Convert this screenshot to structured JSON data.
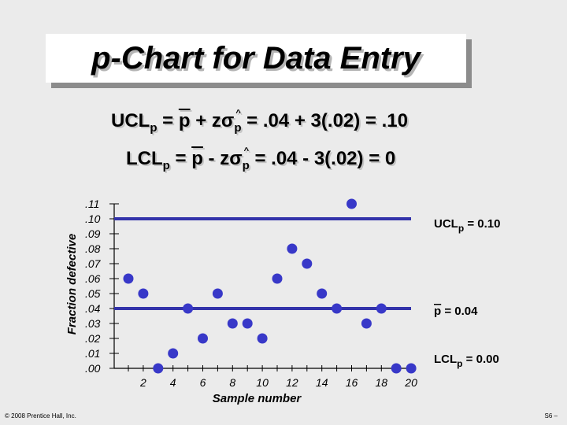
{
  "slide": {
    "title": "p-Chart for Data Entry",
    "ucl_equation": {
      "lhs": "UCL",
      "sub": "p",
      "p": "p",
      "z": "zσ",
      "rhs": "= .04 + 3(.02) = .10"
    },
    "lcl_equation": {
      "lhs": "LCL",
      "sub": "p",
      "p": "p",
      "z": "zσ",
      "rhs": "= .04 - 3(.02) = 0"
    },
    "copyright": "© 2008 Prentice Hall, Inc.",
    "page_number": "S6 –"
  },
  "chart_data": {
    "type": "scatter",
    "title": "",
    "xlabel": "Sample number",
    "ylabel": "Fraction defective",
    "xlim": [
      1,
      20
    ],
    "ylim": [
      0,
      0.11
    ],
    "x_ticks": [
      2,
      4,
      6,
      8,
      10,
      12,
      14,
      16,
      18,
      20
    ],
    "y_ticks": [
      ".11",
      ".10",
      ".09",
      ".08",
      ".07",
      ".06",
      ".05",
      ".04",
      ".03",
      ".02",
      ".01",
      ".00"
    ],
    "x": [
      1,
      2,
      3,
      4,
      5,
      6,
      7,
      8,
      9,
      10,
      11,
      12,
      13,
      14,
      15,
      16,
      17,
      18,
      19,
      20
    ],
    "y": [
      0.06,
      0.05,
      0.0,
      0.01,
      0.04,
      0.02,
      0.05,
      0.03,
      0.03,
      0.02,
      0.06,
      0.08,
      0.07,
      0.05,
      0.04,
      0.11,
      0.03,
      0.04,
      0.0,
      0.0
    ],
    "point_color": "#3838c8",
    "line_color": "#3333aa",
    "control_lines": [
      {
        "name": "UCL",
        "value": 0.1,
        "label_main": "UCL",
        "label_sub": "p",
        "label_value": "= 0.10"
      },
      {
        "name": "center",
        "value": 0.04,
        "label_main": "p",
        "label_sub": "",
        "label_value": "=  0.04"
      },
      {
        "name": "LCL",
        "value": 0.0,
        "label_main": "LCL",
        "label_sub": "p",
        "label_value": "= 0.00"
      }
    ]
  }
}
